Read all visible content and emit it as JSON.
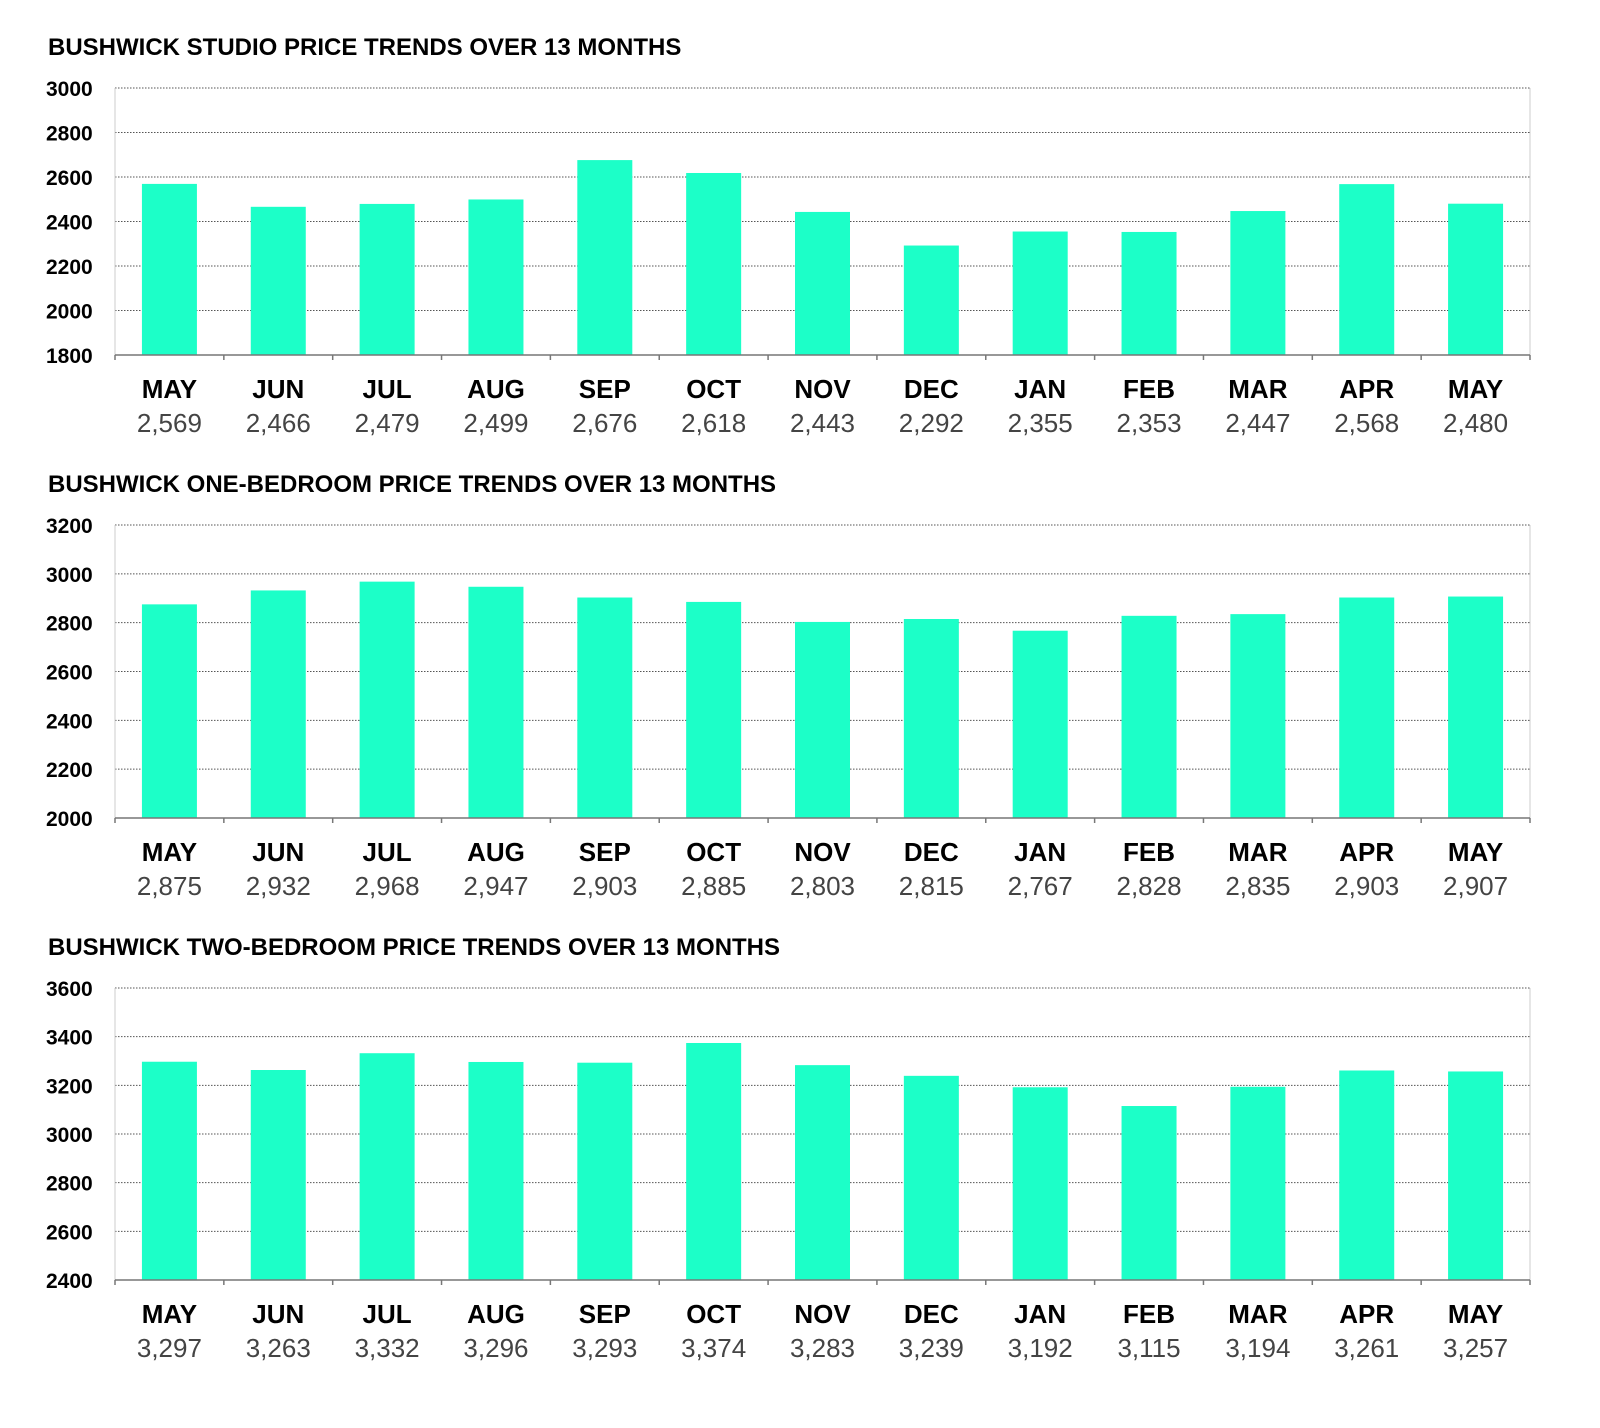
{
  "colors": {
    "bar": "#1cffc8",
    "text": "#000000",
    "value_text": "#444444",
    "grid": "#555555"
  },
  "chart_data": [
    {
      "type": "bar",
      "title": "BUSHWICK STUDIO PRICE TRENDS OVER 13 MONTHS",
      "categories": [
        "MAY",
        "JUN",
        "JUL",
        "AUG",
        "SEP",
        "OCT",
        "NOV",
        "DEC",
        "JAN",
        "FEB",
        "MAR",
        "APR",
        "MAY"
      ],
      "values": [
        2569,
        2466,
        2479,
        2499,
        2676,
        2618,
        2443,
        2292,
        2355,
        2353,
        2447,
        2568,
        2480
      ],
      "value_labels": [
        "2,569",
        "2,466",
        "2,479",
        "2,499",
        "2,676",
        "2,618",
        "2,443",
        "2,292",
        "2,355",
        "2,353",
        "2,447",
        "2,568",
        "2,480"
      ],
      "yticks": [
        "1800",
        "2000",
        "2200",
        "2400",
        "2600",
        "2800",
        "3000"
      ],
      "ylim": [
        1800,
        3000
      ],
      "xlabel": "",
      "ylabel": "",
      "grid": true
    },
    {
      "type": "bar",
      "title": "BUSHWICK ONE-BEDROOM PRICE TRENDS OVER 13 MONTHS",
      "categories": [
        "MAY",
        "JUN",
        "JUL",
        "AUG",
        "SEP",
        "OCT",
        "NOV",
        "DEC",
        "JAN",
        "FEB",
        "MAR",
        "APR",
        "MAY"
      ],
      "values": [
        2875,
        2932,
        2968,
        2947,
        2903,
        2885,
        2803,
        2815,
        2767,
        2828,
        2835,
        2903,
        2907
      ],
      "value_labels": [
        "2,875",
        "2,932",
        "2,968",
        "2,947",
        "2,903",
        "2,885",
        "2,803",
        "2,815",
        "2,767",
        "2,828",
        "2,835",
        "2,903",
        "2,907"
      ],
      "yticks": [
        "2000",
        "2200",
        "2400",
        "2600",
        "2800",
        "3000",
        "3200"
      ],
      "ylim": [
        2000,
        3200
      ],
      "xlabel": "",
      "ylabel": "",
      "grid": true
    },
    {
      "type": "bar",
      "title": "BUSHWICK TWO-BEDROOM PRICE TRENDS OVER 13 MONTHS",
      "categories": [
        "MAY",
        "JUN",
        "JUL",
        "AUG",
        "SEP",
        "OCT",
        "NOV",
        "DEC",
        "JAN",
        "FEB",
        "MAR",
        "APR",
        "MAY"
      ],
      "values": [
        3297,
        3263,
        3332,
        3296,
        3293,
        3374,
        3283,
        3239,
        3192,
        3115,
        3194,
        3261,
        3257
      ],
      "value_labels": [
        "3,297",
        "3,263",
        "3,332",
        "3,296",
        "3,293",
        "3,374",
        "3,283",
        "3,239",
        "3,192",
        "3,115",
        "3,194",
        "3,261",
        "3,257"
      ],
      "yticks": [
        "2400",
        "2600",
        "2800",
        "3000",
        "3200",
        "3400",
        "3600"
      ],
      "ylim": [
        2400,
        3600
      ],
      "xlabel": "",
      "ylabel": "",
      "grid": true
    }
  ]
}
